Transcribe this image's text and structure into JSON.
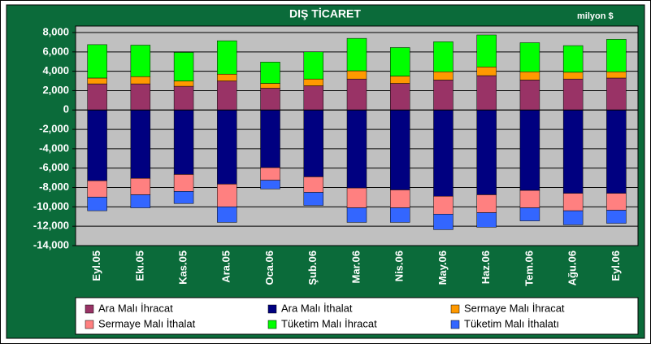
{
  "chart_data": {
    "type": "stacked_bar",
    "title": "DIŞ TİCARET",
    "subtitle": "milyon $",
    "categories": [
      "Eyl.05",
      "Ekı.05",
      "Kas.05",
      "Ara.05",
      "Oca.06",
      "Şub.06",
      "Mar.06",
      "Nis.06",
      "May.06",
      "Haz.06",
      "Tem.06",
      "Ağu.06",
      "Eyl.06"
    ],
    "series": [
      {
        "name": "Ara Malı İhracat",
        "color": "#993366",
        "values": [
          2700,
          2700,
          2450,
          3000,
          2250,
          2500,
          3200,
          2750,
          3100,
          3550,
          3100,
          3200,
          3300
        ]
      },
      {
        "name": "Ara Malı İthalat",
        "color": "#000080",
        "values": [
          -7300,
          -7050,
          -6650,
          -7650,
          -5950,
          -6900,
          -8050,
          -8250,
          -8900,
          -8750,
          -8300,
          -8600,
          -8600
        ]
      },
      {
        "name": "Sermaye Malı İhracat",
        "color": "#ff9900",
        "values": [
          600,
          750,
          550,
          700,
          500,
          700,
          850,
          750,
          850,
          900,
          850,
          700,
          650
        ]
      },
      {
        "name": "Sermaye Malı İthalat",
        "color": "#ff8080",
        "values": [
          -1700,
          -1700,
          -1750,
          -2350,
          -1300,
          -1600,
          -2050,
          -1850,
          -1850,
          -1850,
          -1800,
          -1800,
          -1750
        ]
      },
      {
        "name": "Tüketim Malı İhracat",
        "color": "#00ff00",
        "values": [
          3450,
          3250,
          2950,
          3450,
          2200,
          2800,
          3350,
          2950,
          3100,
          3300,
          3000,
          2750,
          3350
        ]
      },
      {
        "name": "Tüketim Malı İthalatı",
        "color": "#3366ff",
        "values": [
          -1400,
          -1350,
          -1250,
          -1600,
          -900,
          -1350,
          -1500,
          -1500,
          -1600,
          -1500,
          -1350,
          -1450,
          -1350
        ]
      }
    ],
    "ylim": [
      -14000,
      8000
    ],
    "yticks": [
      {
        "value": 8000,
        "label": "8,000"
      },
      {
        "value": 6000,
        "label": "6,000"
      },
      {
        "value": 4000,
        "label": "4,000"
      },
      {
        "value": 2000,
        "label": "2,000"
      },
      0,
      {
        "value": -2000,
        "label": "-2,000"
      },
      {
        "value": -4000,
        "label": "-4,000"
      },
      {
        "value": -6000,
        "label": "-6,000"
      },
      {
        "value": -8000,
        "label": "-8,000"
      },
      {
        "value": -10000,
        "label": "-10,000"
      },
      {
        "value": -12000,
        "label": "-12,000"
      },
      {
        "value": -14000,
        "label": "-14,000"
      }
    ],
    "grid": true
  }
}
